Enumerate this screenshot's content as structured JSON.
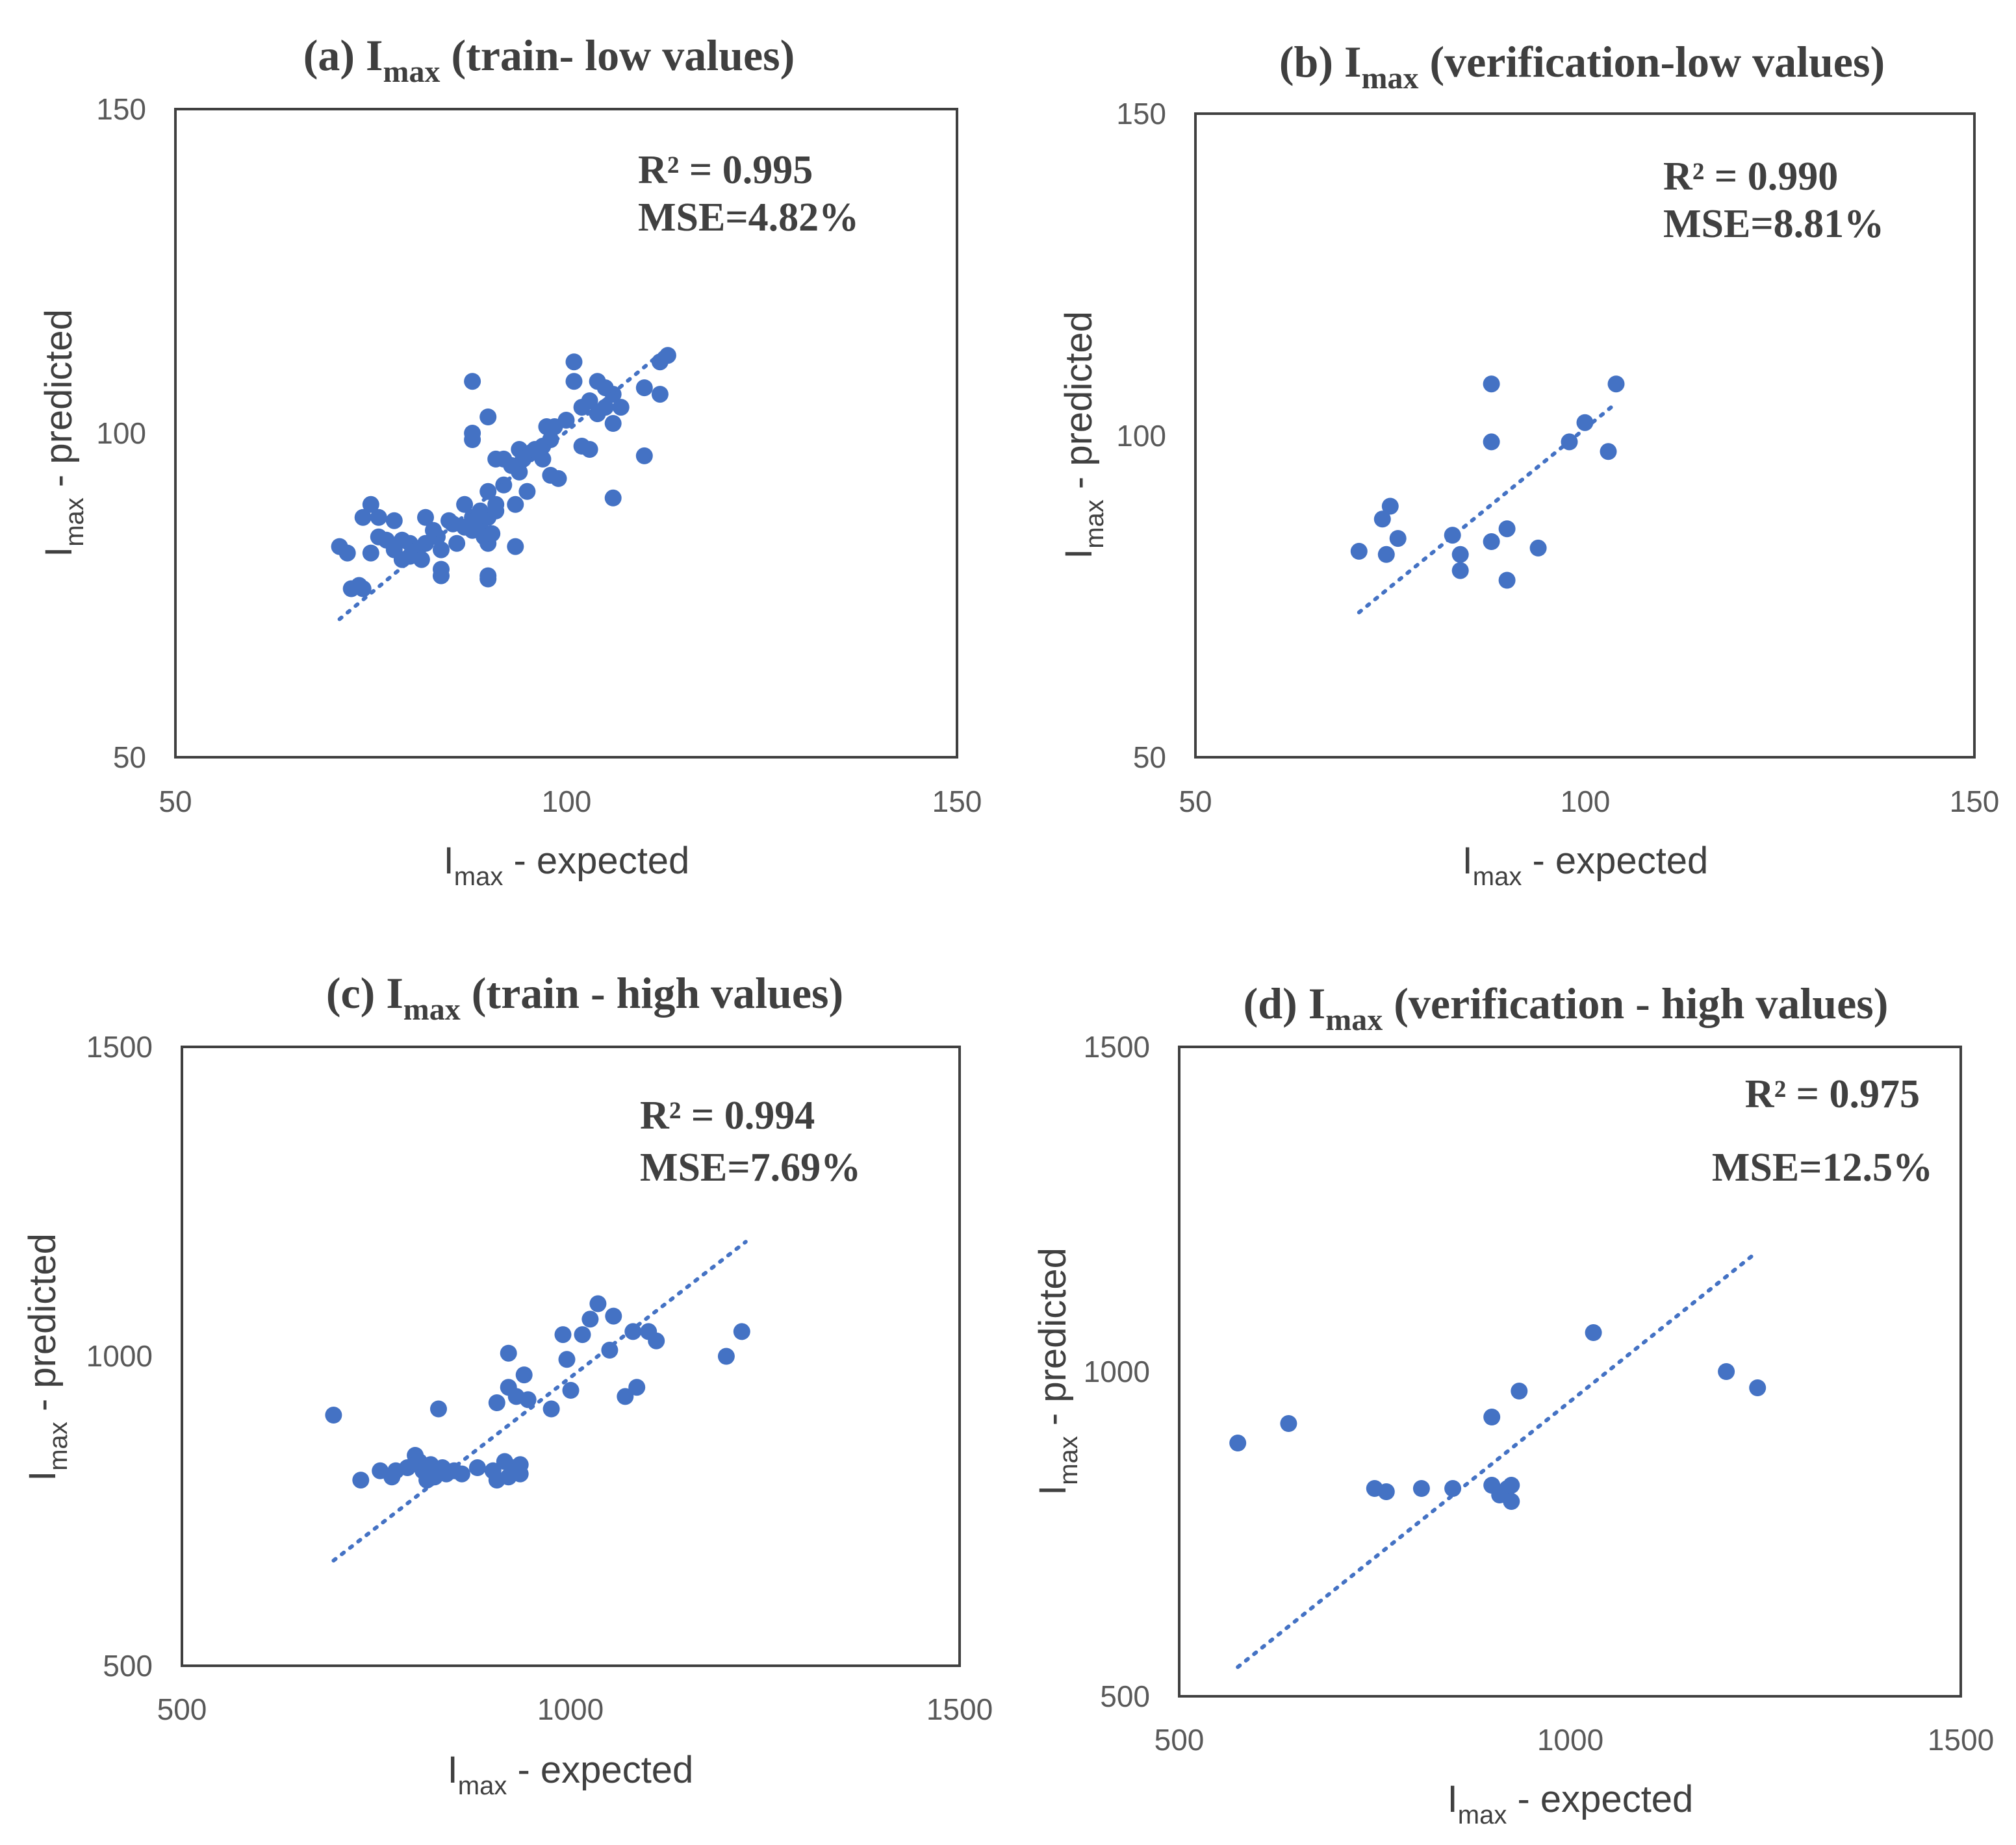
{
  "figure": {
    "axis_label_main": "I",
    "axis_label_sub": "max",
    "xlabel_rest": " - expected",
    "ylabel_rest": " - predicted"
  },
  "colors": {
    "points": "#4472c4",
    "trend": "#4472c4",
    "frame": "#404040"
  },
  "chart_data": [
    {
      "id": "a",
      "type": "scatter",
      "title_prefix": "(a) I",
      "title_sub": "max",
      "title_suffix": " (train- low values)",
      "xlabel": "Imax - expected",
      "ylabel": "Imax - predicted",
      "xlim": [
        50,
        150
      ],
      "ylim": [
        50,
        150
      ],
      "xticks": [
        "50",
        "100",
        "150"
      ],
      "yticks": [
        "50",
        "100",
        "150"
      ],
      "stats": {
        "r2": "R² = 0.995",
        "mse": "MSE=4.82%"
      },
      "trendline": {
        "x": [
          71,
          113
        ],
        "y": [
          71.3,
          113.2
        ]
      },
      "points": [
        [
          71,
          82.5
        ],
        [
          72,
          81.5
        ],
        [
          72.5,
          76
        ],
        [
          73.5,
          76.5
        ],
        [
          74,
          76
        ],
        [
          74,
          87
        ],
        [
          75,
          89
        ],
        [
          75,
          81.5
        ],
        [
          76,
          87
        ],
        [
          76,
          84
        ],
        [
          77,
          83.5
        ],
        [
          78,
          86.5
        ],
        [
          78,
          82
        ],
        [
          79,
          80.5
        ],
        [
          79,
          83.5
        ],
        [
          80,
          81
        ],
        [
          80,
          83
        ],
        [
          81,
          82
        ],
        [
          81.5,
          80.5
        ],
        [
          82,
          83
        ],
        [
          82,
          87
        ],
        [
          83,
          85
        ],
        [
          83.5,
          84
        ],
        [
          84,
          82
        ],
        [
          84,
          79
        ],
        [
          84,
          78
        ],
        [
          85,
          86.5
        ],
        [
          85.5,
          86
        ],
        [
          86,
          83
        ],
        [
          87,
          85.5
        ],
        [
          87,
          89
        ],
        [
          88,
          87
        ],
        [
          88,
          85
        ],
        [
          88,
          100
        ],
        [
          88,
          99
        ],
        [
          88,
          108
        ],
        [
          89,
          88
        ],
        [
          89,
          86
        ],
        [
          89.5,
          84
        ],
        [
          90,
          83
        ],
        [
          90,
          87
        ],
        [
          90,
          91
        ],
        [
          90,
          77.5
        ],
        [
          90,
          78
        ],
        [
          90,
          102.5
        ],
        [
          90.5,
          84.5
        ],
        [
          91,
          88
        ],
        [
          91,
          89
        ],
        [
          91,
          96
        ],
        [
          92,
          92
        ],
        [
          92,
          96
        ],
        [
          93,
          95
        ],
        [
          93.5,
          89
        ],
        [
          93.5,
          82.5
        ],
        [
          94,
          97.5
        ],
        [
          94,
          94
        ],
        [
          94.5,
          96
        ],
        [
          95,
          91
        ],
        [
          95.5,
          97
        ],
        [
          96,
          97.5
        ],
        [
          97,
          96
        ],
        [
          97,
          98
        ],
        [
          97.5,
          101
        ],
        [
          98,
          99
        ],
        [
          98,
          93.5
        ],
        [
          98.5,
          101
        ],
        [
          99,
          93
        ],
        [
          100,
          102
        ],
        [
          101,
          111
        ],
        [
          101,
          108
        ],
        [
          102,
          98
        ],
        [
          102,
          104
        ],
        [
          103,
          97.5
        ],
        [
          103,
          105
        ],
        [
          104,
          108
        ],
        [
          104,
          103
        ],
        [
          105,
          104
        ],
        [
          105,
          107
        ],
        [
          106,
          90
        ],
        [
          106,
          101.5
        ],
        [
          106,
          106
        ],
        [
          107,
          104
        ],
        [
          110,
          107
        ],
        [
          110,
          96.5
        ],
        [
          112,
          106
        ],
        [
          112,
          111
        ],
        [
          113,
          112
        ]
      ]
    },
    {
      "id": "b",
      "type": "scatter",
      "title_prefix": "(b) I",
      "title_sub": "max",
      "title_suffix": " (verification-low values)",
      "xlabel": "Imax - expected",
      "ylabel": "Imax - predicted",
      "xlim": [
        50,
        150
      ],
      "ylim": [
        50,
        150
      ],
      "xticks": [
        "50",
        "100",
        "150"
      ],
      "yticks": [
        "50",
        "100",
        "150"
      ],
      "stats": {
        "r2": "R² = 0.990",
        "mse": "MSE=8.81%"
      },
      "trendline": {
        "x": [
          71,
          104
        ],
        "y": [
          72.5,
          105
        ]
      },
      "points": [
        [
          71,
          82
        ],
        [
          74,
          87
        ],
        [
          74.5,
          81.5
        ],
        [
          75,
          89
        ],
        [
          76,
          84
        ],
        [
          83,
          84.5
        ],
        [
          84,
          81.5
        ],
        [
          84,
          79
        ],
        [
          88,
          83.5
        ],
        [
          88,
          108
        ],
        [
          88,
          99
        ],
        [
          90,
          85.5
        ],
        [
          90,
          77.5
        ],
        [
          94,
          82.5
        ],
        [
          98,
          99
        ],
        [
          100,
          102
        ],
        [
          103,
          97.5
        ],
        [
          104,
          108
        ]
      ]
    },
    {
      "id": "c",
      "type": "scatter",
      "title_prefix": "(c) I",
      "title_sub": "max",
      "title_suffix": " (train - high values)",
      "xlabel": "Imax - expected",
      "ylabel": "Imax - predicted",
      "xlim": [
        500,
        1500
      ],
      "ylim": [
        500,
        1500
      ],
      "xticks": [
        "500",
        "1000",
        "1500"
      ],
      "yticks": [
        "500",
        "1000",
        "1500"
      ],
      "stats": {
        "r2": "R² = 0.994",
        "mse": "MSE=7.69%"
      },
      "trendline": {
        "x": [
          695,
          1225
        ],
        "y": [
          670,
          1185
        ]
      },
      "points": [
        [
          695,
          905
        ],
        [
          730,
          800
        ],
        [
          755,
          815
        ],
        [
          770,
          805
        ],
        [
          775,
          815
        ],
        [
          790,
          820
        ],
        [
          800,
          840
        ],
        [
          805,
          830
        ],
        [
          810,
          815
        ],
        [
          815,
          800
        ],
        [
          820,
          825
        ],
        [
          825,
          805
        ],
        [
          830,
          915
        ],
        [
          835,
          820
        ],
        [
          840,
          810
        ],
        [
          850,
          815
        ],
        [
          860,
          810
        ],
        [
          880,
          820
        ],
        [
          900,
          815
        ],
        [
          905,
          925
        ],
        [
          905,
          800
        ],
        [
          915,
          830
        ],
        [
          920,
          950
        ],
        [
          920,
          1005
        ],
        [
          920,
          805
        ],
        [
          925,
          820
        ],
        [
          930,
          935
        ],
        [
          935,
          810
        ],
        [
          935,
          825
        ],
        [
          940,
          970
        ],
        [
          945,
          930
        ],
        [
          975,
          915
        ],
        [
          990,
          1035
        ],
        [
          995,
          995
        ],
        [
          1000,
          945
        ],
        [
          1015,
          1035
        ],
        [
          1025,
          1060
        ],
        [
          1035,
          1085
        ],
        [
          1050,
          1010
        ],
        [
          1055,
          1065
        ],
        [
          1070,
          935
        ],
        [
          1080,
          1040
        ],
        [
          1085,
          950
        ],
        [
          1100,
          1040
        ],
        [
          1110,
          1025
        ],
        [
          1200,
          1000
        ],
        [
          1220,
          1040
        ]
      ]
    },
    {
      "id": "d",
      "type": "scatter",
      "title_prefix": "(d) I",
      "title_sub": "max",
      "title_suffix": " (verification - high values)",
      "xlabel": "Imax - expected",
      "ylabel": "Imax - predicted",
      "xlim": [
        500,
        1500
      ],
      "ylim": [
        500,
        1500
      ],
      "xticks": [
        "500",
        "1000",
        "1500"
      ],
      "yticks": [
        "500",
        "1000",
        "1500"
      ],
      "stats": {
        "r2": "R² = 0.975",
        "mse": "MSE=12.5%"
      },
      "trendline": {
        "x": [
          575,
          1235
        ],
        "y": [
          545,
          1180
        ]
      },
      "points": [
        [
          575,
          890
        ],
        [
          640,
          920
        ],
        [
          750,
          820
        ],
        [
          765,
          815
        ],
        [
          810,
          820
        ],
        [
          850,
          820
        ],
        [
          900,
          930
        ],
        [
          900,
          825
        ],
        [
          910,
          810
        ],
        [
          920,
          820
        ],
        [
          925,
          825
        ],
        [
          925,
          800
        ],
        [
          935,
          970
        ],
        [
          1030,
          1060
        ],
        [
          1200,
          1000
        ],
        [
          1240,
          975
        ]
      ]
    }
  ]
}
